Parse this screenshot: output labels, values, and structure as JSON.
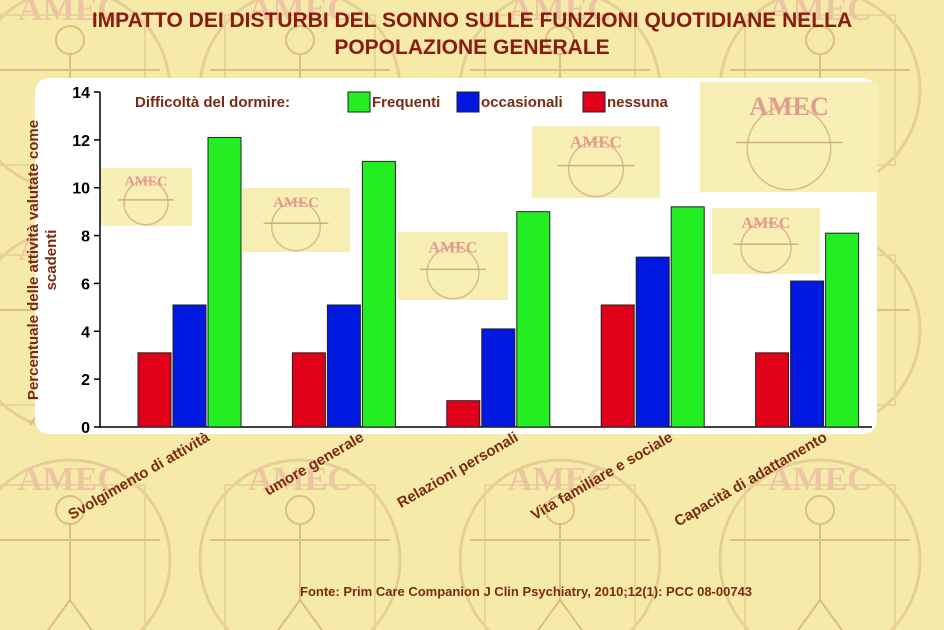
{
  "header": {
    "title_line1": "IMPATTO DEI DISTURBI DEL SONNO SULLE FUNZIONI QUOTIDIANE NELLA",
    "title_line2": "POPOLAZIONE GENERALE"
  },
  "watermark_text": "AMEC",
  "source": "Fonte: Prim Care Companion J Clin Psychiatry, 2010;12(1): PCC 08-00743",
  "colors": {
    "title": "#8b1a10",
    "axis_text": "#7a2a12",
    "nessuna": "#e0001a",
    "occasionali": "#0018e0",
    "frequenti": "#22ee22"
  },
  "chart_data": {
    "type": "bar",
    "ylabel": "Percentuale delle attività valutate come scadenti",
    "ylim": [
      0,
      14
    ],
    "yticks": [
      "0",
      "2",
      "4",
      "6",
      "8",
      "10",
      "12",
      "14"
    ],
    "grid": false,
    "legend_title": "Difficoltà del dormire:",
    "legend_position": "top",
    "legend_order": [
      "Frequenti",
      "occasionali",
      "nessuna"
    ],
    "categories": [
      "Svolgimento di attività",
      "umore generale",
      "Relazioni personali",
      "Vita familiare e sociale",
      "Capacità di adattamento"
    ],
    "series": [
      {
        "name": "nessuna",
        "color": "#e0001a",
        "values": [
          3.1,
          3.1,
          1.1,
          5.1,
          3.1
        ]
      },
      {
        "name": "occasionali",
        "color": "#0018e0",
        "values": [
          5.1,
          5.1,
          4.1,
          7.1,
          6.1
        ]
      },
      {
        "name": "Frequenti",
        "color": "#22ee22",
        "values": [
          12.1,
          11.1,
          9.0,
          9.2,
          8.1
        ]
      }
    ]
  }
}
